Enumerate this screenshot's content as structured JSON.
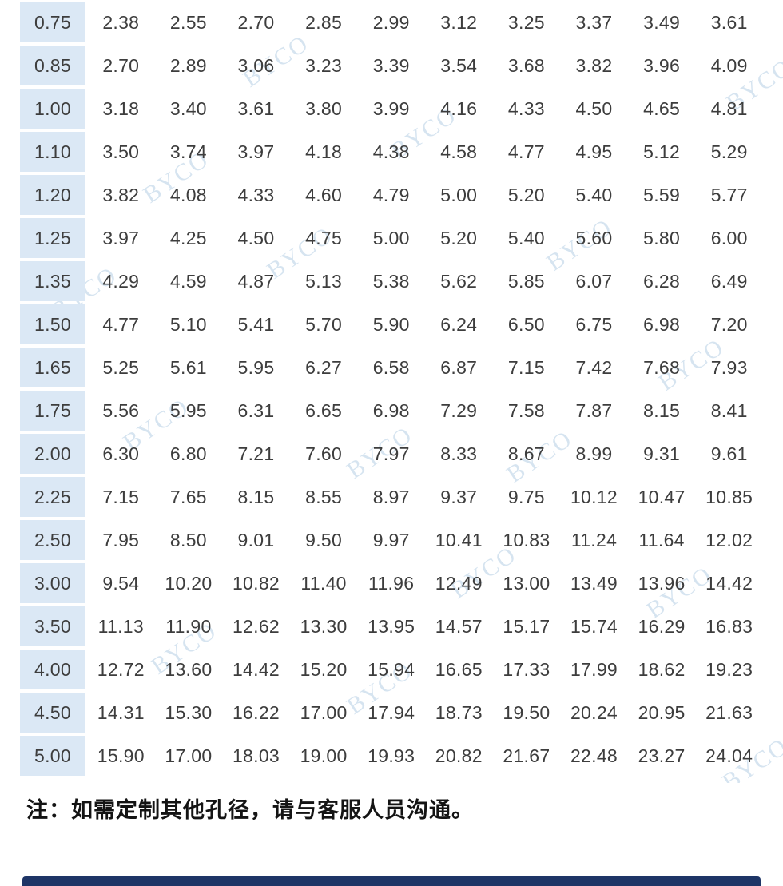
{
  "table": {
    "rows": [
      {
        "label": "0.75",
        "values": [
          "2.38",
          "2.55",
          "2.70",
          "2.85",
          "2.99",
          "3.12",
          "3.25",
          "3.37",
          "3.49",
          "3.61"
        ]
      },
      {
        "label": "0.85",
        "values": [
          "2.70",
          "2.89",
          "3.06",
          "3.23",
          "3.39",
          "3.54",
          "3.68",
          "3.82",
          "3.96",
          "4.09"
        ]
      },
      {
        "label": "1.00",
        "values": [
          "3.18",
          "3.40",
          "3.61",
          "3.80",
          "3.99",
          "4.16",
          "4.33",
          "4.50",
          "4.65",
          "4.81"
        ]
      },
      {
        "label": "1.10",
        "values": [
          "3.50",
          "3.74",
          "3.97",
          "4.18",
          "4.38",
          "4.58",
          "4.77",
          "4.95",
          "5.12",
          "5.29"
        ]
      },
      {
        "label": "1.20",
        "values": [
          "3.82",
          "4.08",
          "4.33",
          "4.60",
          "4.79",
          "5.00",
          "5.20",
          "5.40",
          "5.59",
          "5.77"
        ]
      },
      {
        "label": "1.25",
        "values": [
          "3.97",
          "4.25",
          "4.50",
          "4.75",
          "5.00",
          "5.20",
          "5.40",
          "5.60",
          "5.80",
          "6.00"
        ]
      },
      {
        "label": "1.35",
        "values": [
          "4.29",
          "4.59",
          "4.87",
          "5.13",
          "5.38",
          "5.62",
          "5.85",
          "6.07",
          "6.28",
          "6.49"
        ]
      },
      {
        "label": "1.50",
        "values": [
          "4.77",
          "5.10",
          "5.41",
          "5.70",
          "5.90",
          "6.24",
          "6.50",
          "6.75",
          "6.98",
          "7.20"
        ]
      },
      {
        "label": "1.65",
        "values": [
          "5.25",
          "5.61",
          "5.95",
          "6.27",
          "6.58",
          "6.87",
          "7.15",
          "7.42",
          "7.68",
          "7.93"
        ]
      },
      {
        "label": "1.75",
        "values": [
          "5.56",
          "5.95",
          "6.31",
          "6.65",
          "6.98",
          "7.29",
          "7.58",
          "7.87",
          "8.15",
          "8.41"
        ]
      },
      {
        "label": "2.00",
        "values": [
          "6.30",
          "6.80",
          "7.21",
          "7.60",
          "7.97",
          "8.33",
          "8.67",
          "8.99",
          "9.31",
          "9.61"
        ]
      },
      {
        "label": "2.25",
        "values": [
          "7.15",
          "7.65",
          "8.15",
          "8.55",
          "8.97",
          "9.37",
          "9.75",
          "10.12",
          "10.47",
          "10.85"
        ]
      },
      {
        "label": "2.50",
        "values": [
          "7.95",
          "8.50",
          "9.01",
          "9.50",
          "9.97",
          "10.41",
          "10.83",
          "11.24",
          "11.64",
          "12.02"
        ]
      },
      {
        "label": "3.00",
        "values": [
          "9.54",
          "10.20",
          "10.82",
          "11.40",
          "11.96",
          "12.49",
          "13.00",
          "13.49",
          "13.96",
          "14.42"
        ]
      },
      {
        "label": "3.50",
        "values": [
          "11.13",
          "11.90",
          "12.62",
          "13.30",
          "13.95",
          "14.57",
          "15.17",
          "15.74",
          "16.29",
          "16.83"
        ]
      },
      {
        "label": "4.00",
        "values": [
          "12.72",
          "13.60",
          "14.42",
          "15.20",
          "15.94",
          "16.65",
          "17.33",
          "17.99",
          "18.62",
          "19.23"
        ]
      },
      {
        "label": "4.50",
        "values": [
          "14.31",
          "15.30",
          "16.22",
          "17.00",
          "17.94",
          "18.73",
          "19.50",
          "20.24",
          "20.95",
          "21.63"
        ]
      },
      {
        "label": "5.00",
        "values": [
          "15.90",
          "17.00",
          "18.03",
          "19.00",
          "19.93",
          "20.82",
          "21.67",
          "22.48",
          "23.27",
          "24.04"
        ]
      }
    ]
  },
  "note": {
    "text": "注：如需定制其他孔径，请与客服人员沟通。"
  },
  "watermark": {
    "text": "BYCO"
  },
  "colors": {
    "label_column_bg": "#dbe8f5",
    "alt_row_bg": "#eaeaea",
    "cell_text": "#3d3d3d",
    "watermark": "#b5cfe5",
    "note_text": "#141414",
    "next_section_bar": "#1e3566"
  }
}
